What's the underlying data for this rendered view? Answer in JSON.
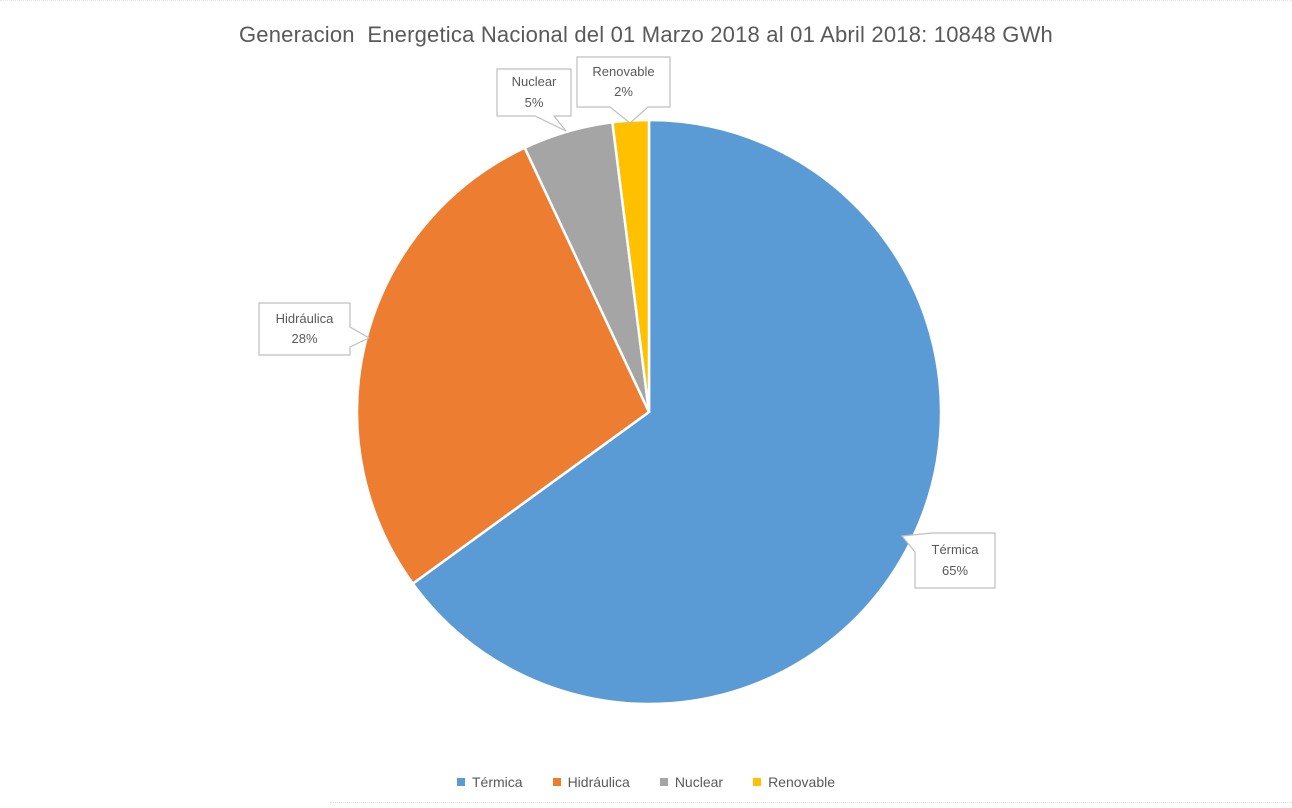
{
  "chart_data": {
    "type": "pie",
    "title": "Generacion  Energetica Nacional del 01 Marzo 2018 al 01 Abril 2018: 10848 GWh",
    "total_label": "10848 GWh",
    "categories": [
      "Térmica",
      "Hidráulica",
      "Nuclear",
      "Renovable"
    ],
    "values": [
      65,
      28,
      5,
      2
    ],
    "unit": "%",
    "colors": [
      "#5B9BD5",
      "#ED7D31",
      "#A5A5A5",
      "#FFC000"
    ],
    "start_angle_deg": 0,
    "direction": "clockwise",
    "legend_position": "bottom",
    "grid": false,
    "callouts": [
      {
        "label": "Térmica",
        "value_label": "65%"
      },
      {
        "label": "Hidráulica",
        "value_label": "28%"
      },
      {
        "label": "Nuclear",
        "value_label": "5%"
      },
      {
        "label": "Renovable",
        "value_label": "2%"
      }
    ]
  },
  "legend": {
    "items": [
      {
        "label": "Térmica"
      },
      {
        "label": "Hidráulica"
      },
      {
        "label": "Nuclear"
      },
      {
        "label": "Renovable"
      }
    ]
  }
}
